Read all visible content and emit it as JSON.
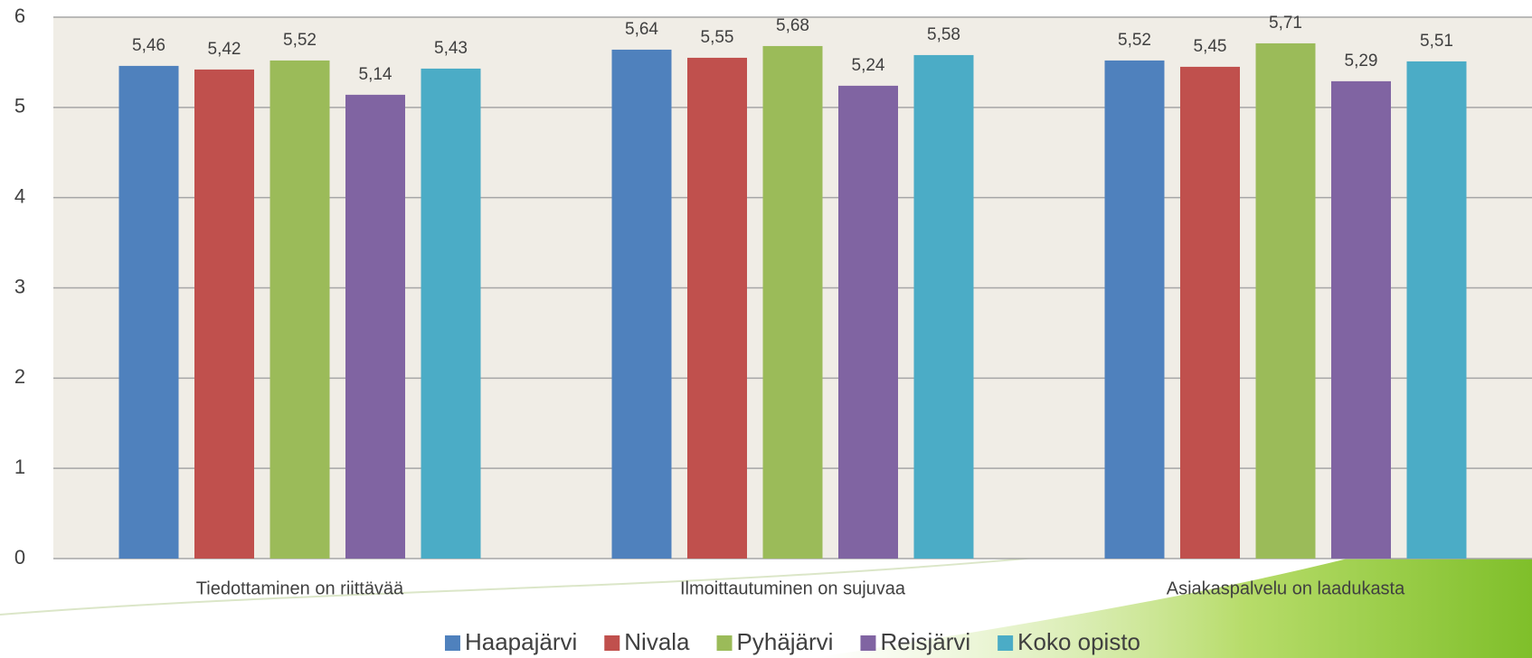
{
  "chart_data": {
    "type": "bar",
    "categories": [
      "Tiedottaminen on riittävää",
      "Ilmoittautuminen on sujuvaa",
      "Asiakaspalvelu on laadukasta"
    ],
    "series": [
      {
        "name": "Haapajärvi",
        "color": "#4f81bd",
        "values": [
          5.46,
          5.64,
          5.52
        ],
        "value_labels": [
          "5,46",
          "5,64",
          "5,52"
        ]
      },
      {
        "name": "Nivala",
        "color": "#c0504d",
        "values": [
          5.42,
          5.55,
          5.45
        ],
        "value_labels": [
          "5,42",
          "5,55",
          "5,45"
        ]
      },
      {
        "name": "Pyhäjärvi",
        "color": "#9bbb59",
        "values": [
          5.52,
          5.68,
          5.71
        ],
        "value_labels": [
          "5,52",
          "5,68",
          "5,71"
        ]
      },
      {
        "name": "Reisjärvi",
        "color": "#8064a2",
        "values": [
          5.14,
          5.24,
          5.29
        ],
        "value_labels": [
          "5,14",
          "5,24",
          "5,29"
        ]
      },
      {
        "name": "Koko opisto",
        "color": "#4bacc6",
        "values": [
          5.43,
          5.58,
          5.51
        ],
        "value_labels": [
          "5,43",
          "5,58",
          "5,51"
        ]
      }
    ],
    "ylim": [
      0,
      6
    ],
    "yticks": [
      0,
      1,
      2,
      3,
      4,
      5,
      6
    ],
    "grid": true,
    "legend": "bottom"
  }
}
